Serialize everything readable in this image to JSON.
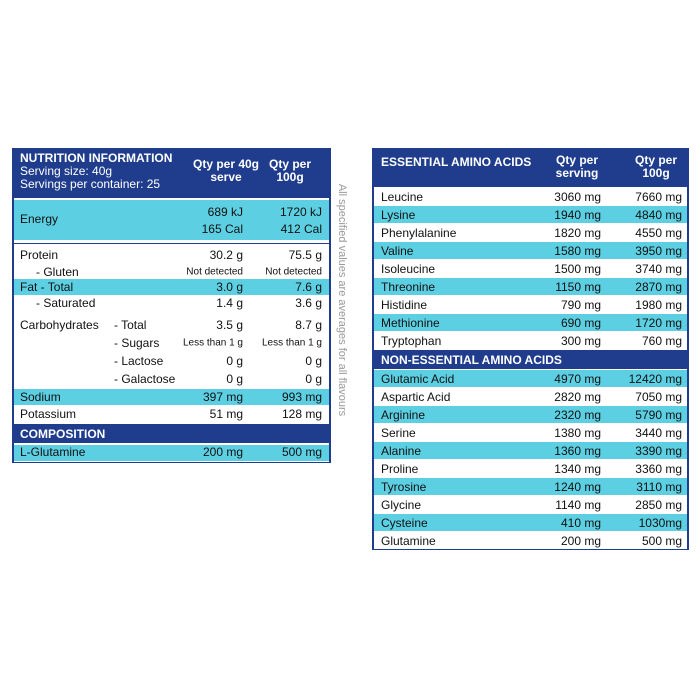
{
  "nutrition": {
    "title": "NUTRITION INFORMATION",
    "serving_size": "Serving size: 40g",
    "servings": "Servings per container: 25",
    "columns": [
      "Qty per 40g serve",
      "Qty per 100g"
    ],
    "energy": {
      "label": "Energy",
      "per_serve": [
        "689 kJ",
        "165 Cal"
      ],
      "per_100g": [
        "1720 kJ",
        "412 Cal"
      ]
    },
    "rows": [
      {
        "label": "Protein",
        "per_serve": "30.2 g",
        "per_100g": "75.5 g"
      },
      {
        "label": "- Gluten",
        "per_serve": "Not detected",
        "per_100g": "Not detected"
      },
      {
        "label": "Fat - Total",
        "per_serve": "3.0 g",
        "per_100g": "7.6 g"
      },
      {
        "label": "- Saturated",
        "per_serve": "1.4 g",
        "per_100g": "3.6 g"
      },
      {
        "label": "Carbohydrates",
        "sub": "- Total",
        "per_serve": "3.5 g",
        "per_100g": "8.7 g"
      },
      {
        "sub": "- Sugars",
        "per_serve": "Less than 1 g",
        "per_100g": "Less than 1 g"
      },
      {
        "sub": "- Lactose",
        "per_serve": "0 g",
        "per_100g": "0 g"
      },
      {
        "sub": "- Galactose",
        "per_serve": "0 g",
        "per_100g": "0 g"
      },
      {
        "label": "Sodium",
        "per_serve": "397 mg",
        "per_100g": "993 mg"
      },
      {
        "label": "Potassium",
        "per_serve": "51 mg",
        "per_100g": "128 mg"
      }
    ],
    "composition": {
      "title": "COMPOSITION",
      "rows": [
        {
          "label": "L-Glutamine",
          "per_serve": "200 mg",
          "per_100g": "500 mg"
        }
      ]
    }
  },
  "note": "All specified values are averages for all flavours",
  "amino": {
    "essential": {
      "title": "ESSENTIAL AMINO ACIDS",
      "columns": [
        "Qty per serving",
        "Qty per 100g"
      ],
      "rows": [
        [
          "Leucine",
          "3060 mg",
          "7660 mg"
        ],
        [
          "Lysine",
          "1940 mg",
          "4840 mg"
        ],
        [
          "Phenylalanine",
          "1820 mg",
          "4550 mg"
        ],
        [
          "Valine",
          "1580 mg",
          "3950 mg"
        ],
        [
          "Isoleucine",
          "1500 mg",
          "3740 mg"
        ],
        [
          "Threonine",
          "1150 mg",
          "2870 mg"
        ],
        [
          "Histidine",
          "790 mg",
          "1980 mg"
        ],
        [
          "Methionine",
          "690 mg",
          "1720 mg"
        ],
        [
          "Tryptophan",
          "300 mg",
          "760 mg"
        ]
      ]
    },
    "non_essential": {
      "title": "NON-ESSENTIAL AMINO ACIDS",
      "rows": [
        [
          "Glutamic Acid",
          "4970 mg",
          "12420 mg"
        ],
        [
          "Aspartic Acid",
          "2820 mg",
          "7050 mg"
        ],
        [
          "Arginine",
          "2320 mg",
          "5790 mg"
        ],
        [
          "Serine",
          "1380 mg",
          "3440 mg"
        ],
        [
          "Alanine",
          "1360 mg",
          "3390 mg"
        ],
        [
          "Proline",
          "1340 mg",
          "3360 mg"
        ],
        [
          "Tyrosine",
          "1240 mg",
          "3110 mg"
        ],
        [
          "Glycine",
          "1140 mg",
          "2850 mg"
        ],
        [
          "Cysteine",
          "410 mg",
          "1030mg"
        ],
        [
          "Glutamine",
          "200 mg",
          "500 mg"
        ]
      ]
    }
  }
}
